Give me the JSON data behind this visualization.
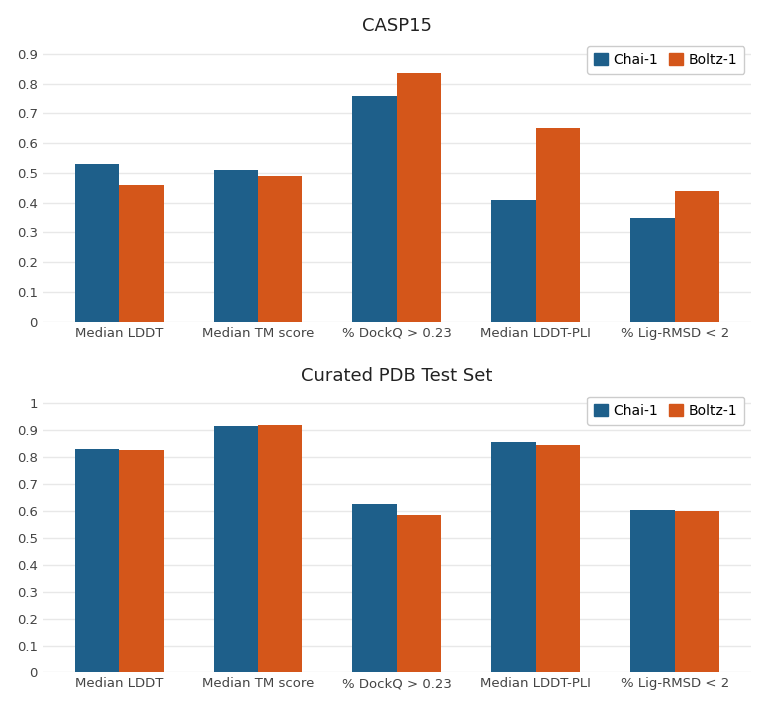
{
  "casp15": {
    "title": "CASP15",
    "categories": [
      "Median LDDT",
      "Median TM score",
      "% DockQ > 0.23",
      "Median LDDT-PLI",
      "% Lig-RMSD < 2"
    ],
    "chai1": [
      0.53,
      0.51,
      0.76,
      0.41,
      0.35
    ],
    "boltz1": [
      0.46,
      0.49,
      0.835,
      0.65,
      0.44
    ],
    "ylim": [
      0,
      0.95
    ],
    "yticks": [
      0,
      0.1,
      0.2,
      0.3,
      0.4,
      0.5,
      0.6,
      0.7,
      0.8,
      0.9
    ],
    "ytick_labels": [
      "0",
      "0.1",
      "0.2",
      "0.3",
      "0.4",
      "0.5",
      "0.6",
      "0.7",
      "0.8",
      "0.9"
    ]
  },
  "pdb": {
    "title": "Curated PDB Test Set",
    "categories": [
      "Median LDDT",
      "Median TM score",
      "% DockQ > 0.23",
      "Median LDDT-PLI",
      "% Lig-RMSD < 2"
    ],
    "chai1": [
      0.83,
      0.915,
      0.625,
      0.855,
      0.605
    ],
    "boltz1": [
      0.825,
      0.92,
      0.585,
      0.845,
      0.6
    ],
    "ylim": [
      0,
      1.05
    ],
    "yticks": [
      0,
      0.1,
      0.2,
      0.3,
      0.4,
      0.5,
      0.6,
      0.7,
      0.8,
      0.9,
      1.0
    ],
    "ytick_labels": [
      "0",
      "0.1",
      "0.2",
      "0.3",
      "0.4",
      "0.5",
      "0.6",
      "0.7",
      "0.8",
      "0.9",
      "1"
    ]
  },
  "color_chai": "#1e5f8a",
  "color_boltz": "#d4561a",
  "bar_width": 0.32,
  "legend_labels": [
    "Chai-1",
    "Boltz-1"
  ],
  "background_color": "#ffffff",
  "grid_color": "#e8e8e8",
  "title_fontsize": 13,
  "tick_fontsize": 9.5,
  "legend_fontsize": 10
}
